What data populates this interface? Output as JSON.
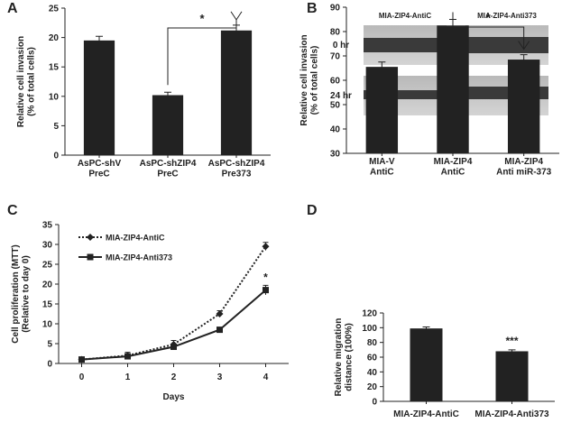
{
  "chart_data": [
    {
      "type": "bar",
      "panel": "A",
      "ylabel": "Relative cell invasion\n(% of total cells)",
      "categories": [
        "AsPC-shV\nPreC",
        "AsPC-shZIP4\nPreC",
        "AsPC-shZIP4\nPre373"
      ],
      "values": [
        19.5,
        10.2,
        21.2
      ],
      "errors": [
        0.7,
        0.5,
        0.9
      ],
      "color": "#222222",
      "ylim": [
        0,
        25
      ],
      "yticks": [
        0,
        5,
        10,
        15,
        20,
        25
      ],
      "annotation": "*"
    },
    {
      "type": "bar",
      "panel": "B",
      "ylabel": "Relative cell invasion\n(% of total cells)",
      "categories": [
        "MIA-V\nAntiC",
        "MIA-ZIP4\nAntiC",
        "MIA-ZIP4\nAnti miR-373"
      ],
      "values": [
        65.5,
        82.5,
        68.5
      ],
      "errors": [
        2,
        2.5,
        2
      ],
      "color": "#222222",
      "ylim": [
        30,
        90
      ],
      "yticks": [
        30,
        40,
        50,
        60,
        70,
        80,
        90
      ],
      "annotation": "*"
    },
    {
      "type": "line",
      "panel": "C",
      "xlabel": "Days",
      "ylabel": "Cell proliferation (MTT)\n(Relative to day 0)",
      "x": [
        0,
        1,
        2,
        3,
        4
      ],
      "xlim": [
        -0.5,
        4.5
      ],
      "xticks": [
        0,
        1,
        2,
        3,
        4
      ],
      "ylim": [
        0,
        35
      ],
      "yticks": [
        0,
        5,
        10,
        15,
        20,
        25,
        30,
        35
      ],
      "legend": "upper left",
      "annotation": "*",
      "series": [
        {
          "name": "MIA-ZIP4-AntiC",
          "color": "#222222",
          "style": "dotted",
          "marker": "diamond",
          "values": [
            1,
            2,
            4.8,
            12.5,
            29.5
          ],
          "errors": [
            0.5,
            0.8,
            1,
            0.8,
            1
          ]
        },
        {
          "name": "MIA-ZIP4-Anti373",
          "color": "#222222",
          "style": "solid",
          "marker": "square",
          "values": [
            1,
            1.8,
            4.2,
            8.5,
            18.5
          ],
          "errors": [
            0.5,
            0.5,
            0.5,
            0.3,
            1.2
          ]
        }
      ]
    },
    {
      "type": "bar",
      "panel": "D",
      "ylabel": "Relative migration\ndistance (100%)",
      "categories": [
        "MIA-ZIP4-AntiC",
        "MIA-ZIP4-Anti373"
      ],
      "values": [
        99,
        68
      ],
      "errors": [
        2,
        2
      ],
      "color": "#222222",
      "ylim": [
        0,
        120
      ],
      "yticks": [
        0,
        20,
        40,
        60,
        80,
        100,
        120
      ],
      "annotation": "***"
    }
  ],
  "images": {
    "columns": [
      "MIA-ZIP4-AntiC",
      "MIA-ZIP4-Anti373"
    ],
    "rows": [
      "0 hr",
      "24 hr"
    ]
  }
}
